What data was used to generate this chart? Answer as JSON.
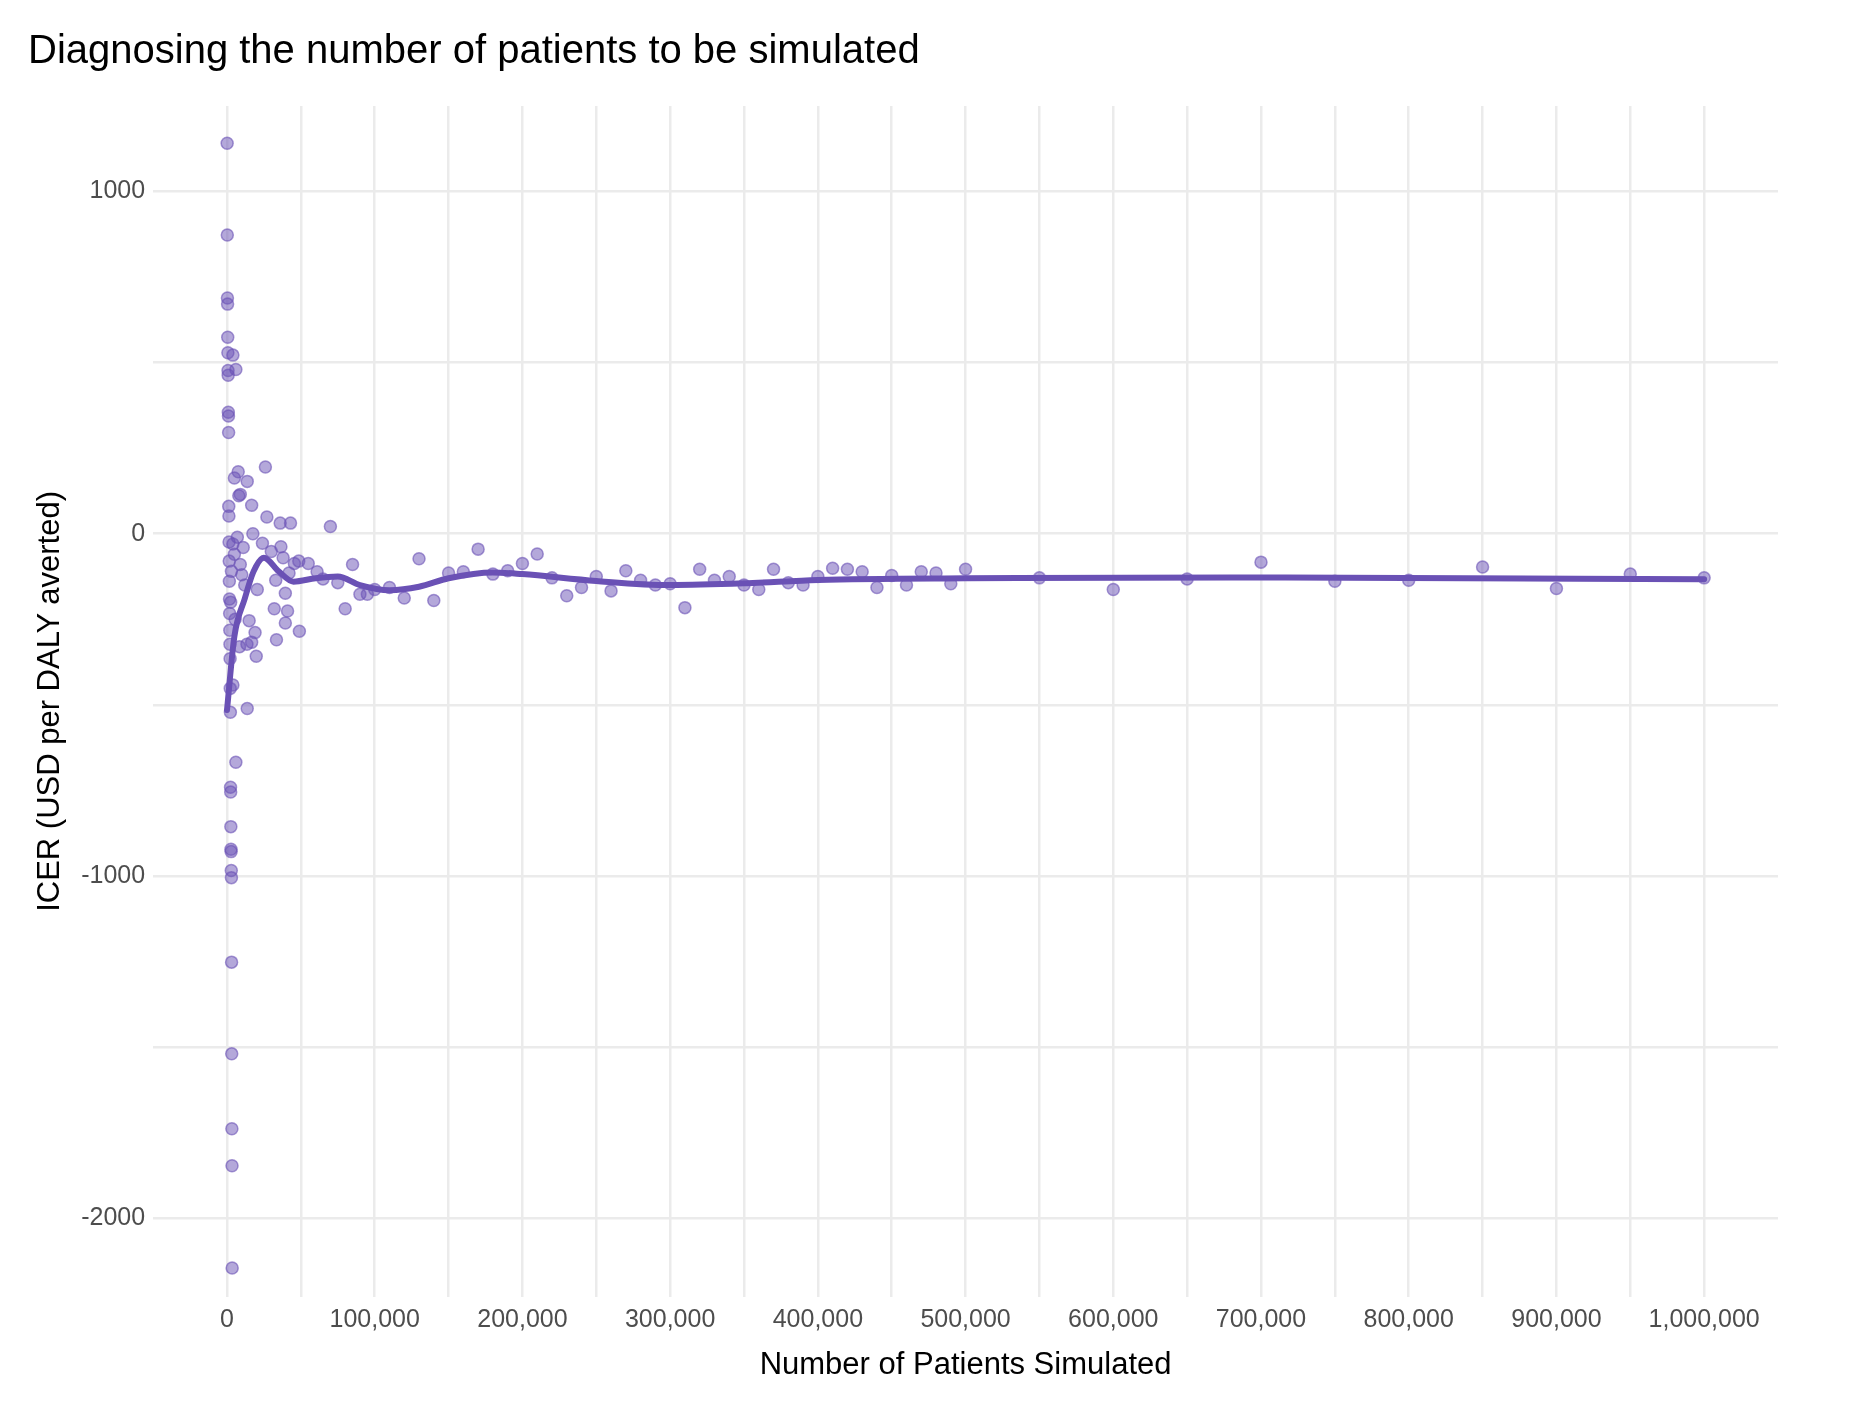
{
  "chart_data": {
    "type": "scatter",
    "title": "Diagnosing the number of patients to be simulated",
    "xlabel": "Number of Patients Simulated",
    "ylabel": "ICER (USD per DALY averted)",
    "xlim": [
      -50000,
      1050000
    ],
    "ylim": [
      -2230,
      1250
    ],
    "xticks": [
      0,
      {
        "value": 50000,
        "label": null
      },
      {
        "value": 100000,
        "label": "100,000"
      },
      {
        "value": 150000,
        "label": null
      },
      {
        "value": 200000,
        "label": "200,000"
      },
      {
        "value": 250000,
        "label": null
      },
      {
        "value": 300000,
        "label": "300,000"
      },
      {
        "value": 350000,
        "label": null
      },
      {
        "value": 400000,
        "label": "400,000"
      },
      {
        "value": 450000,
        "label": null
      },
      {
        "value": 500000,
        "label": "500,000"
      },
      {
        "value": 550000,
        "label": null
      },
      {
        "value": 600000,
        "label": "600,000"
      },
      {
        "value": 650000,
        "label": null
      },
      {
        "value": 700000,
        "label": "700,000"
      },
      {
        "value": 750000,
        "label": null
      },
      {
        "value": 800000,
        "label": "800,000"
      },
      {
        "value": 850000,
        "label": null
      },
      {
        "value": 900000,
        "label": "900,000"
      },
      {
        "value": 950000,
        "label": null
      },
      {
        "value": 1000000,
        "label": "1,000,000"
      }
    ],
    "yticks": [
      -2000,
      {
        "value": -1500,
        "label": null
      },
      -1000,
      {
        "value": -500,
        "label": null
      },
      0,
      {
        "value": 500,
        "label": null
      },
      1000
    ],
    "grid": true,
    "legend": false,
    "marker": "circle",
    "series": [
      {
        "type": "scatter",
        "color": "#6a51b5",
        "x": [
          100,
          200,
          300,
          400,
          500,
          600,
          700,
          800,
          900,
          1000,
          1100,
          1200,
          1300,
          1400,
          1500,
          1600,
          1700,
          1800,
          1900,
          2000,
          2100,
          2200,
          2300,
          2400,
          2500,
          2600,
          2700,
          2800,
          2900,
          3000,
          3100,
          3200,
          3300,
          3400,
          3500,
          4000,
          6000,
          7600,
          13700,
          16700,
          9000,
          26000,
          27000,
          36000,
          43000,
          70000,
          17500,
          24000,
          30000,
          36500,
          38000,
          45600,
          48600,
          42000,
          33000,
          39500,
          20500,
          32000,
          41000,
          39500,
          49000,
          33500,
          15000,
          19000,
          19800,
          13500,
          16700,
          13700,
          6000,
          4000,
          5000,
          8000,
          4000,
          3000,
          5000,
          7000,
          9000,
          11000,
          12000,
          2500,
          5500,
          8500,
          10000,
          55000,
          61000,
          65000,
          75000,
          80000,
          85000,
          90000,
          95000,
          100000,
          110000,
          120000,
          130000,
          140000,
          150000,
          160000,
          170000,
          180000,
          190000,
          200000,
          210000,
          220000,
          230000,
          240000,
          250000,
          260000,
          270000,
          280000,
          290000,
          300000,
          310000,
          320000,
          330000,
          340000,
          350000,
          360000,
          370000,
          380000,
          390000,
          400000,
          410000,
          420000,
          430000,
          440000,
          450000,
          460000,
          470000,
          480000,
          490000,
          500000,
          550000,
          600000,
          650000,
          700000,
          750000,
          800000,
          850000,
          900000,
          950000,
          1000000
        ],
        "values": [
          1141,
          873,
          689,
          671,
          574,
          529,
          477,
          463,
          355,
          344,
          296,
          80,
          52,
          -24,
          -80,
          -139,
          -191,
          -233,
          -282,
          -323,
          -365,
          -452,
          -522,
          -741,
          -755,
          -856,
          -922,
          -929,
          -984,
          -1005,
          -1252,
          -1520,
          -1739,
          -1847,
          -2146,
          522,
          480,
          181,
          153,
          83,
          115,
          195,
          49,
          31,
          31,
          21,
          0,
          -28,
          -52,
          -38,
          -70,
          -87,
          -80,
          -115,
          -136,
          -174,
          -163,
          -219,
          -226,
          -261,
          -285,
          -310,
          -254,
          -289,
          -358,
          -323,
          -317,
          -511,
          -668,
          -442,
          163,
          111,
          -30,
          -110,
          -60,
          -10,
          -90,
          -40,
          -150,
          -200,
          -250,
          -330,
          -120,
          -87,
          -111,
          -132,
          -143,
          -219,
          -90,
          -177,
          -177,
          -163,
          -157,
          -188,
          -73,
          -195,
          -115,
          -111,
          -45,
          -118,
          -108,
          -87,
          -59,
          -129,
          -181,
          -157,
          -125,
          -167,
          -108,
          -136,
          -150,
          -146,
          -216,
          -104,
          -136,
          -125,
          -150,
          -163,
          -104,
          -143,
          -150,
          -125,
          -101,
          -104,
          -111,
          -157,
          -122,
          -150,
          -111,
          -115,
          -146,
          -104,
          -129,
          -163,
          -132,
          -83,
          -139,
          -136,
          -97,
          -160,
          -118,
          -129
        ]
      },
      {
        "type": "line",
        "color": "#6a51b5",
        "marker": "none",
        "x": [
          0,
          5000,
          12000,
          18000,
          25000,
          35000,
          45000,
          60000,
          75000,
          90000,
          110000,
          130000,
          150000,
          180000,
          200000,
          250000,
          300000,
          350000,
          400000,
          500000,
          700000,
          1000000
        ],
        "values": [
          -515,
          -300,
          -190,
          -110,
          -70,
          -110,
          -140,
          -130,
          -125,
          -150,
          -165,
          -155,
          -130,
          -113,
          -118,
          -138,
          -150,
          -145,
          -135,
          -130,
          -128,
          -133
        ]
      }
    ]
  }
}
